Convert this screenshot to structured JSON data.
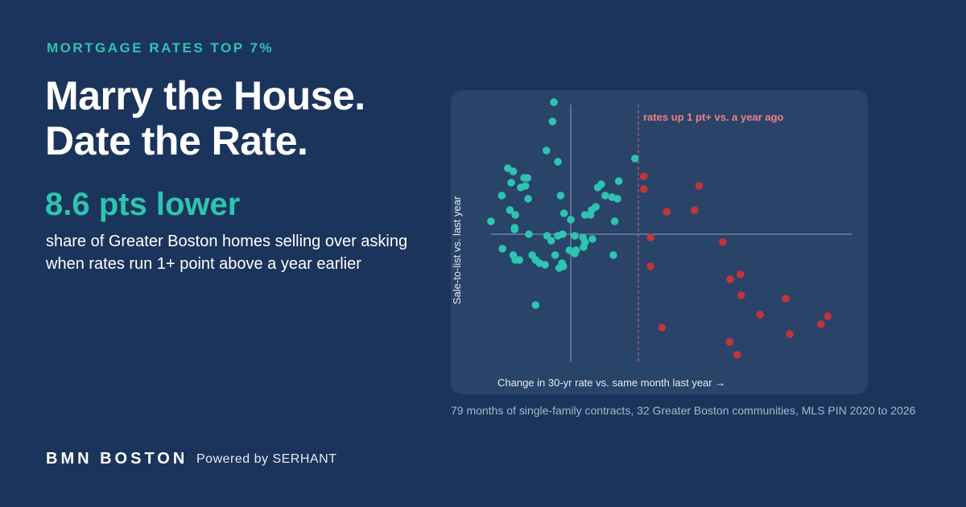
{
  "kicker": "MORTGAGE RATES TOP 7%",
  "headline": [
    "Marry the House.",
    "Date the Rate."
  ],
  "stat": "8.6 pts lower",
  "stat_text": "share of Greater Boston homes selling over asking when rates run 1+ point above a year earlier",
  "brand": "BMN BOSTON",
  "powered_by": "Powered by SERHANT",
  "chart_data": {
    "type": "scatter",
    "xlabel": "Change in 30-yr rate vs. same month last year →",
    "ylabel": "Sale-to-list vs. last year",
    "caption": "79 months of single-family contracts, 32 Greater Boston communities, MLS PIN 2020 to 2026",
    "annotation": {
      "x": 1,
      "text": "rates up 1 pt+ vs. a year ago",
      "color": "#f07f86"
    },
    "xlim": [
      -1.2,
      4.2
    ],
    "ylim": [
      -8.5,
      8.5
    ],
    "series": [
      {
        "color": "#2ec4b0",
        "x": [
          -0.25,
          -0.27,
          -0.36,
          -0.19,
          0.95,
          -0.93,
          -0.85,
          -0.69,
          -0.64,
          -0.88,
          -0.74,
          -0.67,
          -1.02,
          -0.63,
          -0.15,
          0.71,
          0.45,
          0.4,
          0.51,
          0.61,
          0.69,
          0.37,
          0.31,
          0.29,
          0.65,
          -0.9,
          -0.82,
          -1.18,
          -0.1,
          0.0,
          0.21,
          -0.62,
          -0.35,
          -0.29,
          -0.19,
          -0.12,
          0.06,
          0.18,
          0.32,
          -0.83,
          -0.83,
          -1.01,
          -0.85,
          -0.82,
          -0.76,
          -0.57,
          -0.52,
          -0.46,
          -0.38,
          -0.23,
          -0.02,
          0.06,
          0.19,
          0.63,
          0.08,
          -0.13,
          -0.17,
          -0.11,
          -0.52,
          0.21
        ],
        "values": [
          8.2,
          7.0,
          5.2,
          4.5,
          4.7,
          4.1,
          3.9,
          3.5,
          3.5,
          3.2,
          2.9,
          3.0,
          2.4,
          2.2,
          2.4,
          3.3,
          3.1,
          2.9,
          2.4,
          2.3,
          2.2,
          1.7,
          1.5,
          1.2,
          0.8,
          1.5,
          1.2,
          0.8,
          1.3,
          0.9,
          1.2,
          0.0,
          -0.1,
          -0.4,
          -0.1,
          0.0,
          -0.1,
          -0.2,
          -0.3,
          0.4,
          0.3,
          -0.9,
          -1.3,
          -1.6,
          -1.6,
          -1.3,
          -1.6,
          -1.8,
          -1.9,
          -1.3,
          -1.0,
          -1.2,
          -0.8,
          -1.3,
          -1.0,
          -1.8,
          -2.1,
          -2.0,
          -4.4,
          -0.5
        ]
      },
      {
        "color": "#c1353c",
        "x": [
          1.08,
          1.08,
          1.9,
          1.42,
          1.83,
          1.18,
          2.25,
          1.18,
          2.51,
          2.36,
          2.52,
          3.18,
          2.8,
          3.8,
          3.7,
          3.24,
          1.35,
          2.35,
          2.46
        ],
        "values": [
          3.6,
          2.8,
          3.0,
          1.4,
          1.5,
          -0.2,
          -0.5,
          -2.0,
          -2.5,
          -2.8,
          -3.8,
          -4.0,
          -5.0,
          -5.1,
          -5.6,
          -6.2,
          -5.8,
          -6.7,
          -7.5
        ]
      }
    ]
  }
}
